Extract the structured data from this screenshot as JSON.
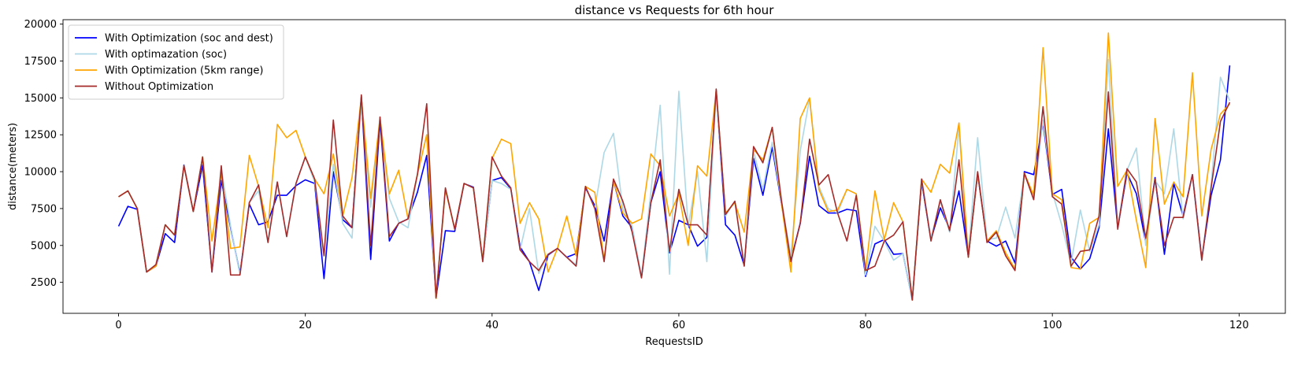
{
  "chart_data": {
    "type": "line",
    "title": "distance vs Requests for 6th hour",
    "xlabel": "RequestsID",
    "ylabel": "distance(meters)",
    "xlim": [
      -5.95,
      124.95
    ],
    "ylim": [
      400,
      20300
    ],
    "xticks": [
      0,
      20,
      40,
      60,
      80,
      100,
      120
    ],
    "yticks": [
      2500,
      5000,
      7500,
      10000,
      12500,
      15000,
      17500,
      20000
    ],
    "grid": false,
    "legend_position": "upper left",
    "x": [
      0,
      1,
      2,
      3,
      4,
      5,
      6,
      7,
      8,
      9,
      10,
      11,
      12,
      13,
      14,
      15,
      16,
      17,
      18,
      19,
      20,
      21,
      22,
      23,
      24,
      25,
      26,
      27,
      28,
      29,
      30,
      31,
      32,
      33,
      34,
      35,
      36,
      37,
      38,
      39,
      40,
      41,
      42,
      43,
      44,
      45,
      46,
      47,
      48,
      49,
      50,
      51,
      52,
      53,
      54,
      55,
      56,
      57,
      58,
      59,
      60,
      61,
      62,
      63,
      64,
      65,
      66,
      67,
      68,
      69,
      70,
      71,
      72,
      73,
      74,
      75,
      76,
      77,
      78,
      79,
      80,
      81,
      82,
      83,
      84,
      85,
      86,
      87,
      88,
      89,
      90,
      91,
      92,
      93,
      94,
      95,
      96,
      97,
      98,
      99,
      100,
      101,
      102,
      103,
      104,
      105,
      106,
      107,
      108,
      109,
      110,
      111,
      112,
      113,
      114,
      115,
      116,
      117,
      118,
      119
    ],
    "series": [
      {
        "name": "With Optimization (soc and dest)",
        "color": "#0000ff",
        "values": [
          6300,
          7650,
          7450,
          3200,
          3600,
          5800,
          5200,
          10450,
          7300,
          10450,
          3200,
          9400,
          6200,
          3100,
          7800,
          6400,
          6600,
          8400,
          8400,
          9050,
          9450,
          9200,
          2750,
          10000,
          6750,
          6200,
          15100,
          4050,
          13450,
          5300,
          6500,
          6800,
          8600,
          11100,
          1450,
          6000,
          5950,
          9200,
          8950,
          4000,
          9400,
          9600,
          8850,
          4900,
          3900,
          1950,
          4350,
          4800,
          4200,
          4450,
          8900,
          7700,
          5300,
          9400,
          7000,
          6200,
          2850,
          7900,
          10000,
          4500,
          6700,
          6400,
          4950,
          5550,
          15500,
          6400,
          5700,
          3650,
          10900,
          8400,
          11650,
          7800,
          4000,
          6500,
          11050,
          7700,
          7200,
          7200,
          7450,
          7350,
          2900,
          5100,
          5400,
          4400,
          4450,
          1300,
          9300,
          5400,
          7550,
          6100,
          8700,
          4250,
          9850,
          5300,
          4950,
          5300,
          3800,
          10000,
          9800,
          13300,
          8450,
          8800,
          4200,
          3400,
          4100,
          6200,
          12900,
          6200,
          9900,
          8500,
          5200,
          9600,
          4400,
          9200,
          7000,
          9800,
          4100,
          8400,
          10800,
          17200
        ]
      },
      {
        "name": "With optimazation (soc)",
        "color": "#add8e6",
        "values": [
          8300,
          8700,
          7500,
          3200,
          3700,
          6400,
          5700,
          10400,
          7300,
          11000,
          3200,
          10200,
          6300,
          3000,
          7900,
          8700,
          5200,
          9300,
          5600,
          9200,
          11000,
          9300,
          4300,
          10500,
          6500,
          5500,
          14800,
          7600,
          13700,
          8200,
          6600,
          6200,
          9800,
          12500,
          1500,
          8800,
          6100,
          9200,
          8900,
          4000,
          9400,
          9200,
          8800,
          4700,
          7500,
          3100,
          4400,
          4800,
          4200,
          3700,
          9000,
          7500,
          11300,
          12600,
          7500,
          6300,
          2900,
          8600,
          14500,
          3050,
          15450,
          6300,
          10000,
          3900,
          15400,
          7000,
          8000,
          3600,
          11400,
          8800,
          12000,
          7900,
          4300,
          11400,
          14950,
          9000,
          7500,
          7200,
          8800,
          8500,
          3000,
          6300,
          5300,
          4000,
          4450,
          1300,
          9400,
          5500,
          8000,
          5900,
          13000,
          4300,
          12300,
          5400,
          5500,
          7600,
          5500,
          9900,
          8100,
          13500,
          8600,
          6400,
          3800,
          7400,
          4600,
          6400,
          17600,
          6300,
          10100,
          11600,
          5000,
          9400,
          8500,
          12900,
          6800,
          9800,
          4000,
          9100,
          16400,
          14800
        ]
      },
      {
        "name": "With Optimization (5km range)",
        "color": "#ffa500",
        "values": [
          8300,
          8700,
          7500,
          3200,
          3600,
          6400,
          5700,
          10400,
          7300,
          11000,
          5300,
          9900,
          4800,
          4900,
          11100,
          9000,
          6200,
          13200,
          12300,
          12800,
          11000,
          9500,
          8500,
          11200,
          7000,
          9600,
          15000,
          8200,
          13600,
          8500,
          10100,
          6800,
          9800,
          12500,
          1400,
          8800,
          6100,
          9200,
          8900,
          4000,
          10900,
          12200,
          11900,
          6500,
          7900,
          6800,
          3200,
          4800,
          7000,
          4300,
          9000,
          8600,
          4000,
          9400,
          7200,
          6500,
          6800,
          11200,
          10400,
          7000,
          8500,
          5000,
          10400,
          9700,
          15500,
          7200,
          7900,
          5900,
          11500,
          10800,
          13000,
          7800,
          3200,
          13600,
          15000,
          8800,
          7300,
          7400,
          8800,
          8500,
          3300,
          8700,
          5400,
          7900,
          6600,
          1300,
          9500,
          8600,
          10500,
          9900,
          13300,
          4200,
          9900,
          5300,
          6000,
          4500,
          3400,
          9900,
          8400,
          18400,
          8500,
          8100,
          3500,
          3400,
          6500,
          6900,
          19400,
          9000,
          10100,
          6700,
          3500,
          13600,
          7800,
          9300,
          8300,
          16700,
          7000,
          11500,
          13900,
          14600
        ]
      },
      {
        "name": "Without Optimization",
        "color": "#a52a2a",
        "values": [
          8300,
          8700,
          7500,
          3200,
          3700,
          6400,
          5700,
          10400,
          7300,
          11000,
          3200,
          10400,
          3000,
          3000,
          7900,
          9100,
          5200,
          9300,
          5600,
          9200,
          11000,
          9500,
          4300,
          13500,
          7000,
          6200,
          15200,
          5000,
          13700,
          5600,
          6500,
          6800,
          9800,
          14600,
          1450,
          8900,
          6100,
          9200,
          8900,
          3900,
          11000,
          9700,
          8900,
          4700,
          3900,
          3300,
          4400,
          4800,
          4200,
          3600,
          9000,
          7500,
          3900,
          9500,
          8000,
          5900,
          2800,
          7900,
          10800,
          4600,
          8800,
          6400,
          6400,
          5700,
          15600,
          7100,
          8000,
          3600,
          11700,
          10600,
          13000,
          8000,
          3900,
          6500,
          12200,
          9100,
          9800,
          7200,
          5300,
          8400,
          3300,
          3600,
          5300,
          5700,
          6600,
          1300,
          9500,
          5300,
          8100,
          6000,
          10800,
          4200,
          10000,
          5200,
          5900,
          4300,
          3300,
          9900,
          8100,
          14400,
          8300,
          7800,
          3600,
          4600,
          4700,
          7000,
          15400,
          6100,
          10200,
          9300,
          5500,
          9500,
          5000,
          6900,
          6900,
          9800,
          4000,
          8900,
          13400,
          14700
        ]
      }
    ]
  }
}
